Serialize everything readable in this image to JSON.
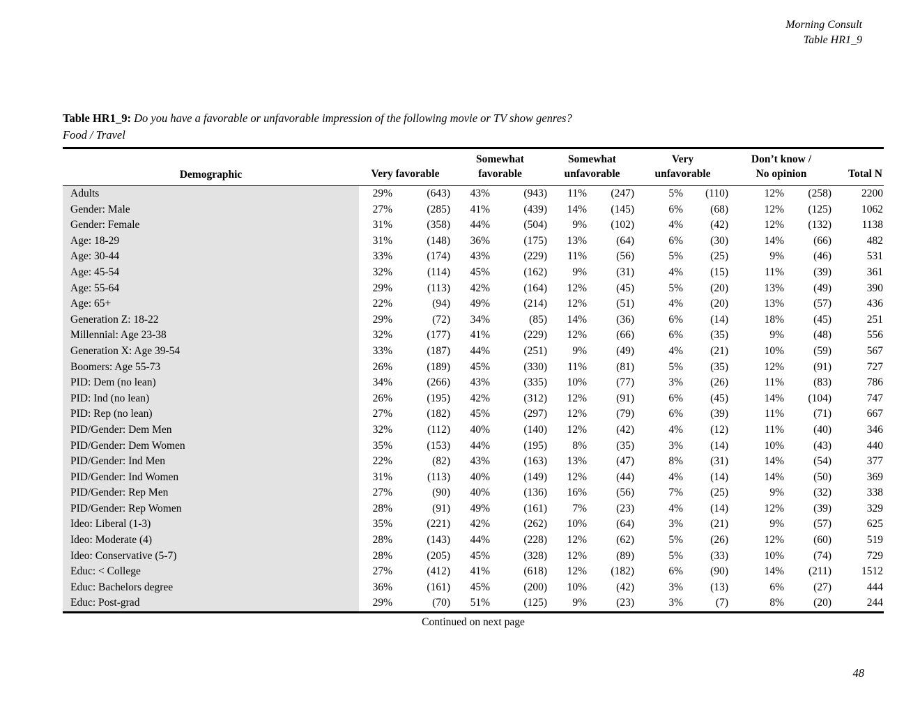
{
  "doc_header": {
    "brand": "Morning Consult",
    "table_ref": "Table HR1_9"
  },
  "title": {
    "label": "Table HR1_9:",
    "question": "Do you have a favorable or unfavorable impression of the following movie or TV show genres?",
    "subtitle": "Food / Travel"
  },
  "table": {
    "demographic_header": "Demographic",
    "columns": [
      {
        "line1": "",
        "line2": "Very favorable"
      },
      {
        "line1": "Somewhat",
        "line2": "favorable"
      },
      {
        "line1": "Somewhat",
        "line2": "unfavorable"
      },
      {
        "line1": "Very",
        "line2": "unfavorable"
      },
      {
        "line1": "Don’t know /",
        "line2": "No opinion"
      },
      {
        "line1": "",
        "line2": "Total N"
      }
    ],
    "rows": [
      [
        "Adults",
        "29%",
        "(643)",
        "43%",
        "(943)",
        "11%",
        "(247)",
        "5%",
        "(110)",
        "12%",
        "(258)",
        "2200"
      ],
      [
        "Gender: Male",
        "27%",
        "(285)",
        "41%",
        "(439)",
        "14%",
        "(145)",
        "6%",
        "(68)",
        "12%",
        "(125)",
        "1062"
      ],
      [
        "Gender: Female",
        "31%",
        "(358)",
        "44%",
        "(504)",
        "9%",
        "(102)",
        "4%",
        "(42)",
        "12%",
        "(132)",
        "1138"
      ],
      [
        "Age: 18-29",
        "31%",
        "(148)",
        "36%",
        "(175)",
        "13%",
        "(64)",
        "6%",
        "(30)",
        "14%",
        "(66)",
        "482"
      ],
      [
        "Age: 30-44",
        "33%",
        "(174)",
        "43%",
        "(229)",
        "11%",
        "(56)",
        "5%",
        "(25)",
        "9%",
        "(46)",
        "531"
      ],
      [
        "Age: 45-54",
        "32%",
        "(114)",
        "45%",
        "(162)",
        "9%",
        "(31)",
        "4%",
        "(15)",
        "11%",
        "(39)",
        "361"
      ],
      [
        "Age: 55-64",
        "29%",
        "(113)",
        "42%",
        "(164)",
        "12%",
        "(45)",
        "5%",
        "(20)",
        "13%",
        "(49)",
        "390"
      ],
      [
        "Age: 65+",
        "22%",
        "(94)",
        "49%",
        "(214)",
        "12%",
        "(51)",
        "4%",
        "(20)",
        "13%",
        "(57)",
        "436"
      ],
      [
        "Generation Z: 18-22",
        "29%",
        "(72)",
        "34%",
        "(85)",
        "14%",
        "(36)",
        "6%",
        "(14)",
        "18%",
        "(45)",
        "251"
      ],
      [
        "Millennial: Age 23-38",
        "32%",
        "(177)",
        "41%",
        "(229)",
        "12%",
        "(66)",
        "6%",
        "(35)",
        "9%",
        "(48)",
        "556"
      ],
      [
        "Generation X: Age 39-54",
        "33%",
        "(187)",
        "44%",
        "(251)",
        "9%",
        "(49)",
        "4%",
        "(21)",
        "10%",
        "(59)",
        "567"
      ],
      [
        "Boomers: Age 55-73",
        "26%",
        "(189)",
        "45%",
        "(330)",
        "11%",
        "(81)",
        "5%",
        "(35)",
        "12%",
        "(91)",
        "727"
      ],
      [
        "PID: Dem (no lean)",
        "34%",
        "(266)",
        "43%",
        "(335)",
        "10%",
        "(77)",
        "3%",
        "(26)",
        "11%",
        "(83)",
        "786"
      ],
      [
        "PID: Ind (no lean)",
        "26%",
        "(195)",
        "42%",
        "(312)",
        "12%",
        "(91)",
        "6%",
        "(45)",
        "14%",
        "(104)",
        "747"
      ],
      [
        "PID: Rep (no lean)",
        "27%",
        "(182)",
        "45%",
        "(297)",
        "12%",
        "(79)",
        "6%",
        "(39)",
        "11%",
        "(71)",
        "667"
      ],
      [
        "PID/Gender: Dem Men",
        "32%",
        "(112)",
        "40%",
        "(140)",
        "12%",
        "(42)",
        "4%",
        "(12)",
        "11%",
        "(40)",
        "346"
      ],
      [
        "PID/Gender: Dem Women",
        "35%",
        "(153)",
        "44%",
        "(195)",
        "8%",
        "(35)",
        "3%",
        "(14)",
        "10%",
        "(43)",
        "440"
      ],
      [
        "PID/Gender: Ind Men",
        "22%",
        "(82)",
        "43%",
        "(163)",
        "13%",
        "(47)",
        "8%",
        "(31)",
        "14%",
        "(54)",
        "377"
      ],
      [
        "PID/Gender: Ind Women",
        "31%",
        "(113)",
        "40%",
        "(149)",
        "12%",
        "(44)",
        "4%",
        "(14)",
        "14%",
        "(50)",
        "369"
      ],
      [
        "PID/Gender: Rep Men",
        "27%",
        "(90)",
        "40%",
        "(136)",
        "16%",
        "(56)",
        "7%",
        "(25)",
        "9%",
        "(32)",
        "338"
      ],
      [
        "PID/Gender: Rep Women",
        "28%",
        "(91)",
        "49%",
        "(161)",
        "7%",
        "(23)",
        "4%",
        "(14)",
        "12%",
        "(39)",
        "329"
      ],
      [
        "Ideo: Liberal (1-3)",
        "35%",
        "(221)",
        "42%",
        "(262)",
        "10%",
        "(64)",
        "3%",
        "(21)",
        "9%",
        "(57)",
        "625"
      ],
      [
        "Ideo: Moderate (4)",
        "28%",
        "(143)",
        "44%",
        "(228)",
        "12%",
        "(62)",
        "5%",
        "(26)",
        "12%",
        "(60)",
        "519"
      ],
      [
        "Ideo: Conservative (5-7)",
        "28%",
        "(205)",
        "45%",
        "(328)",
        "12%",
        "(89)",
        "5%",
        "(33)",
        "10%",
        "(74)",
        "729"
      ],
      [
        "Educ: < College",
        "27%",
        "(412)",
        "41%",
        "(618)",
        "12%",
        "(182)",
        "6%",
        "(90)",
        "14%",
        "(211)",
        "1512"
      ],
      [
        "Educ: Bachelors degree",
        "36%",
        "(161)",
        "45%",
        "(200)",
        "10%",
        "(42)",
        "3%",
        "(13)",
        "6%",
        "(27)",
        "444"
      ],
      [
        "Educ: Post-grad",
        "29%",
        "(70)",
        "51%",
        "(125)",
        "9%",
        "(23)",
        "3%",
        "(7)",
        "8%",
        "(20)",
        "244"
      ]
    ]
  },
  "footer": {
    "continued": "Continued on next page",
    "page_number": "48"
  },
  "colors": {
    "row_label_shading": "#e3e3e3",
    "text": "#000000",
    "background": "#ffffff"
  }
}
